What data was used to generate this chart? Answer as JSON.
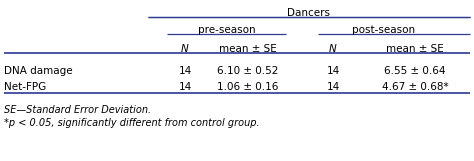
{
  "col_group_label": "Dancers",
  "pre_season_label": "pre-season",
  "post_season_label": "post-season",
  "col_headers_italic": [
    "N",
    "mean ± SE",
    "N",
    "mean ± SE"
  ],
  "row_labels": [
    "DNA damage",
    "Net-FPG"
  ],
  "rows": [
    [
      "14",
      "6.10 ± 0.52",
      "14",
      "6.55 ± 0.64"
    ],
    [
      "14",
      "1.06 ± 0.16",
      "14",
      "4.67 ± 0.68*"
    ]
  ],
  "footnote1": "SE—Standard Error Deviation.",
  "footnote2": "*p < 0.05, significantly different from control group.",
  "line_color": "#2B3990",
  "bg_color": "#ffffff",
  "font_size": 7.5,
  "footnote_font_size": 7.0
}
